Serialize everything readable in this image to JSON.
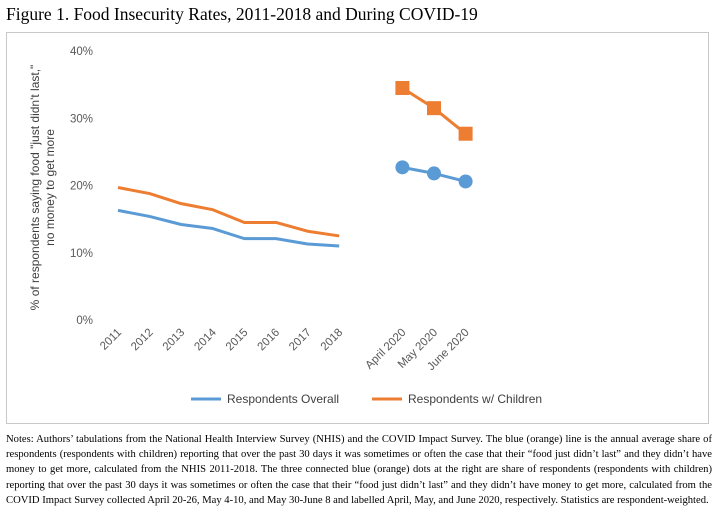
{
  "figure_title": "Figure 1. Food Insecurity Rates, 2011-2018 and During COVID-19",
  "notes": "Notes: Authors’ tabulations from the National Health Interview Survey (NHIS) and the COVID Impact Survey. The blue (orange) line is the annual average share of respondents (respondents with children) reporting that over the past 30 days it was sometimes or often the case that their “food just didn’t last” and they didn’t have money to get more, calculated from the NHIS 2011-2018. The three connected blue (orange) dots at the right are share of respondents (respondents with children) reporting that over the past 30 days it was sometimes or often the case that their “food just didn’t last” and they didn’t have money to get more, calculated from the COVID Impact Survey collected April 20-26, May 4-10, and May 30-June 8 and labelled April, May, and June 2020, respectively. Statistics are respondent-weighted.",
  "chart_data": {
    "type": "line",
    "title": "",
    "ylabel": "% of respondents saying food \"just didn't last,\" no money to get more",
    "xlabel": "",
    "ylim": [
      0,
      40
    ],
    "yticks": [
      0,
      10,
      20,
      30,
      40
    ],
    "ytick_labels": [
      "0%",
      "10%",
      "20%",
      "30%",
      "40%"
    ],
    "categories": [
      "2011",
      "2012",
      "2013",
      "2014",
      "2015",
      "2016",
      "2017",
      "2018",
      "",
      "April 2020",
      "May 2020",
      "June 2020"
    ],
    "grid": false,
    "legend_position": "bottom",
    "series": [
      {
        "name": "Respondents Overall",
        "color": "#5B9BD5",
        "marker": "circle",
        "values": [
          16.3,
          15.4,
          14.2,
          13.6,
          12.1,
          12.1,
          11.3,
          11.0,
          null,
          22.7,
          21.8,
          20.6
        ]
      },
      {
        "name": "Respondents w/ Children",
        "color": "#ED7D31",
        "marker": "square",
        "values": [
          19.7,
          18.8,
          17.3,
          16.4,
          14.5,
          14.5,
          13.2,
          12.5,
          null,
          34.5,
          31.5,
          27.7
        ]
      }
    ]
  }
}
